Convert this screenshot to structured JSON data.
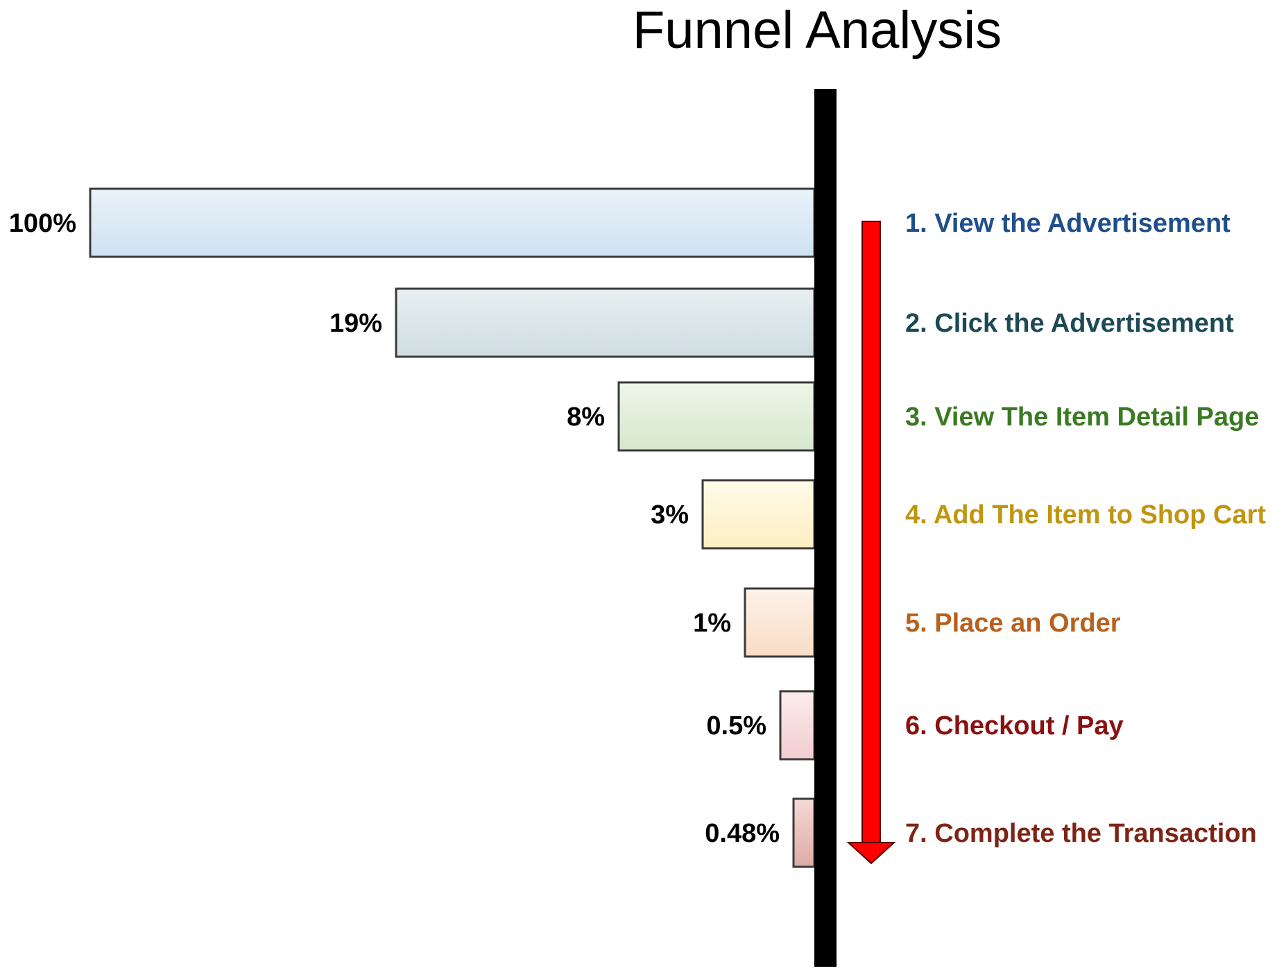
{
  "chart_data": {
    "type": "bar",
    "orientation": "horizontal",
    "title": "Funnel Analysis",
    "categories": [
      "1. View the Advertisement",
      "2. Click the Advertisement",
      "3. View The Item Detail Page",
      "4. Add The Item to Shop Cart",
      "5. Place an Order",
      "6. Checkout / Pay",
      "7. Complete the Transaction"
    ],
    "value_labels": [
      "100%",
      "19%",
      "8%",
      "3%",
      "1%",
      "0.5%",
      "0.48%"
    ],
    "values": [
      100,
      19,
      8,
      3,
      1,
      0.5,
      0.48
    ],
    "bar_colors": [
      [
        "#e9f3f9",
        "#cfe1f2"
      ],
      [
        "#e8eff1",
        "#cfdde2"
      ],
      [
        "#eef5e9",
        "#d6e8cd"
      ],
      [
        "#fffbe9",
        "#fdefc2"
      ],
      [
        "#fdf2e9",
        "#f9dcc6"
      ],
      [
        "#fbeced",
        "#f2cdd0"
      ],
      [
        "#f5d9d6",
        "#ddaba5"
      ]
    ],
    "label_colors": [
      "#1f4e8c",
      "#1c4a56",
      "#3a7a22",
      "#c0950f",
      "#b8601c",
      "#8b1010",
      "#7f2315"
    ],
    "arrow_color": "#ff0000",
    "grid": false,
    "legend": "none"
  }
}
